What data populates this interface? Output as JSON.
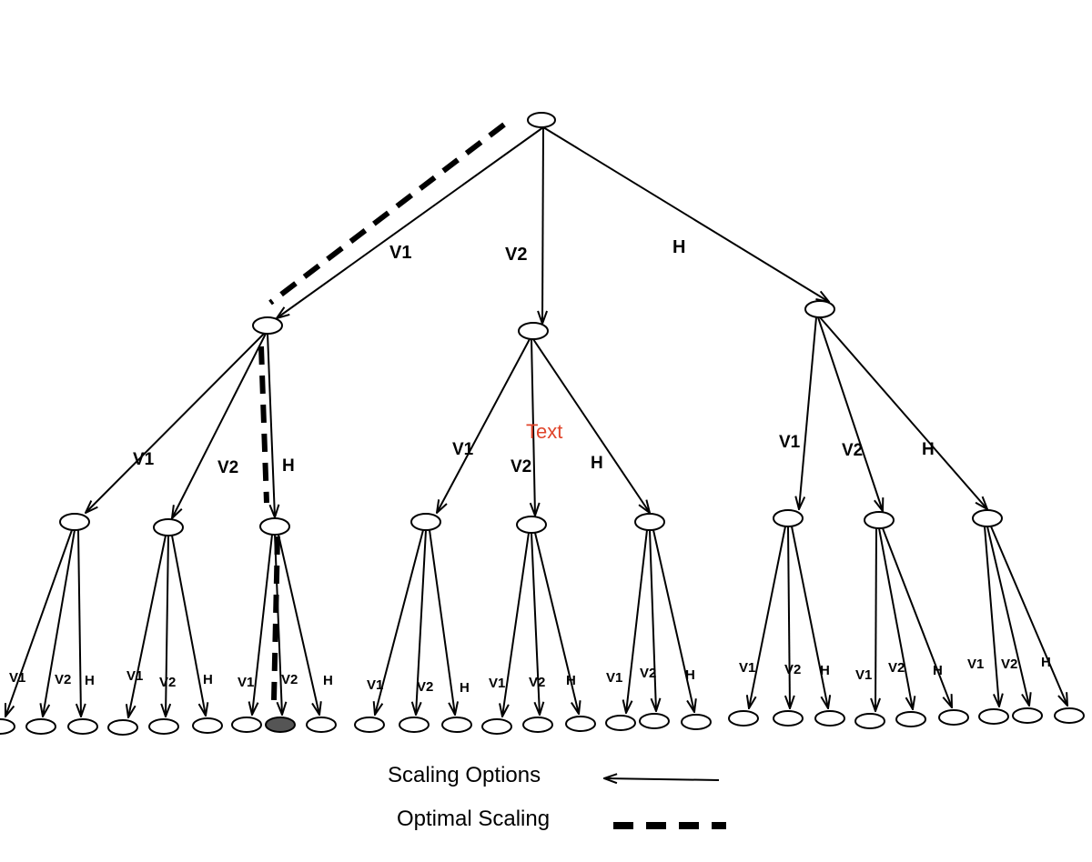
{
  "labels": {
    "v1": "V1",
    "v2": "V2",
    "h": "H"
  },
  "stray_text": "Text",
  "stray_text_color": "#e0452b",
  "selected_node_color": "#555555",
  "legend": {
    "scaling_options": "Scaling Options",
    "optimal_scaling": "Optimal Scaling"
  },
  "legend_icons": [
    "arrow-icon",
    "dashed-line-icon"
  ]
}
